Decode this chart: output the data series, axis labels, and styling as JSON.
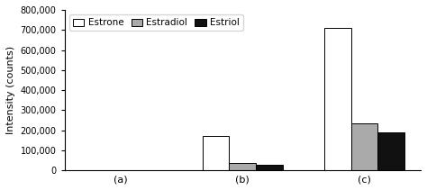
{
  "groups": [
    "(a)",
    "(b)",
    "(c)"
  ],
  "series": [
    "Estrone",
    "Estradiol",
    "Estriol"
  ],
  "values": [
    [
      0,
      170000,
      710000
    ],
    [
      0,
      35000,
      235000
    ],
    [
      0,
      30000,
      190000
    ]
  ],
  "colors": [
    "#ffffff",
    "#aaaaaa",
    "#111111"
  ],
  "edge_colors": [
    "#000000",
    "#000000",
    "#000000"
  ],
  "ylabel": "Intensity (counts)",
  "ylim": [
    0,
    800000
  ],
  "yticks": [
    0,
    100000,
    200000,
    300000,
    400000,
    500000,
    600000,
    700000,
    800000
  ],
  "ytick_labels": [
    "0",
    "100,000",
    "200,000",
    "300,000",
    "400,000",
    "500,000",
    "600,000",
    "700,000",
    "800,000"
  ],
  "bar_width": 0.22,
  "background_color": "#ffffff"
}
